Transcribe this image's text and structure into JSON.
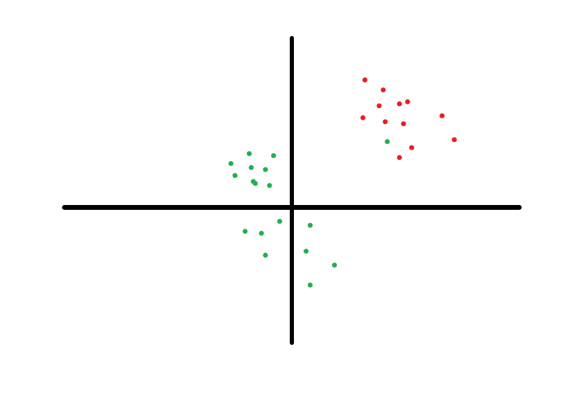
{
  "chart_data": {
    "type": "scatter",
    "title": "",
    "xlabel": "",
    "ylabel": "",
    "xlim": [
      -11.2,
      11.2
    ],
    "ylim": [
      -6.8,
      8.5
    ],
    "grid": false,
    "axes_style": "thick black cross through origin",
    "series": [
      {
        "color": "#ed1c24",
        "points": [
          [
            3.6,
            6.4
          ],
          [
            4.5,
            5.9
          ],
          [
            4.3,
            5.1
          ],
          [
            5.3,
            5.2
          ],
          [
            5.7,
            5.3
          ],
          [
            7.4,
            4.6
          ],
          [
            3.5,
            4.5
          ],
          [
            4.6,
            4.3
          ],
          [
            5.5,
            4.2
          ],
          [
            8.0,
            3.4
          ],
          [
            5.9,
            3.0
          ],
          [
            5.3,
            2.5
          ]
        ]
      },
      {
        "color": "#22b14c",
        "points": [
          [
            4.7,
            3.3
          ],
          [
            -2.1,
            2.7
          ],
          [
            -0.9,
            2.6
          ],
          [
            -3.0,
            2.2
          ],
          [
            -2.0,
            2.0
          ],
          [
            -1.3,
            1.9
          ],
          [
            -2.8,
            1.6
          ],
          [
            -1.9,
            1.3
          ],
          [
            -1.8,
            1.2
          ],
          [
            -1.1,
            1.1
          ],
          [
            -0.6,
            -0.7
          ],
          [
            0.9,
            -0.9
          ],
          [
            -2.3,
            -1.2
          ],
          [
            -1.5,
            -1.3
          ],
          [
            0.7,
            -2.2
          ],
          [
            -1.3,
            -2.4
          ],
          [
            2.1,
            -2.9
          ],
          [
            0.9,
            -3.9
          ]
        ]
      }
    ]
  }
}
